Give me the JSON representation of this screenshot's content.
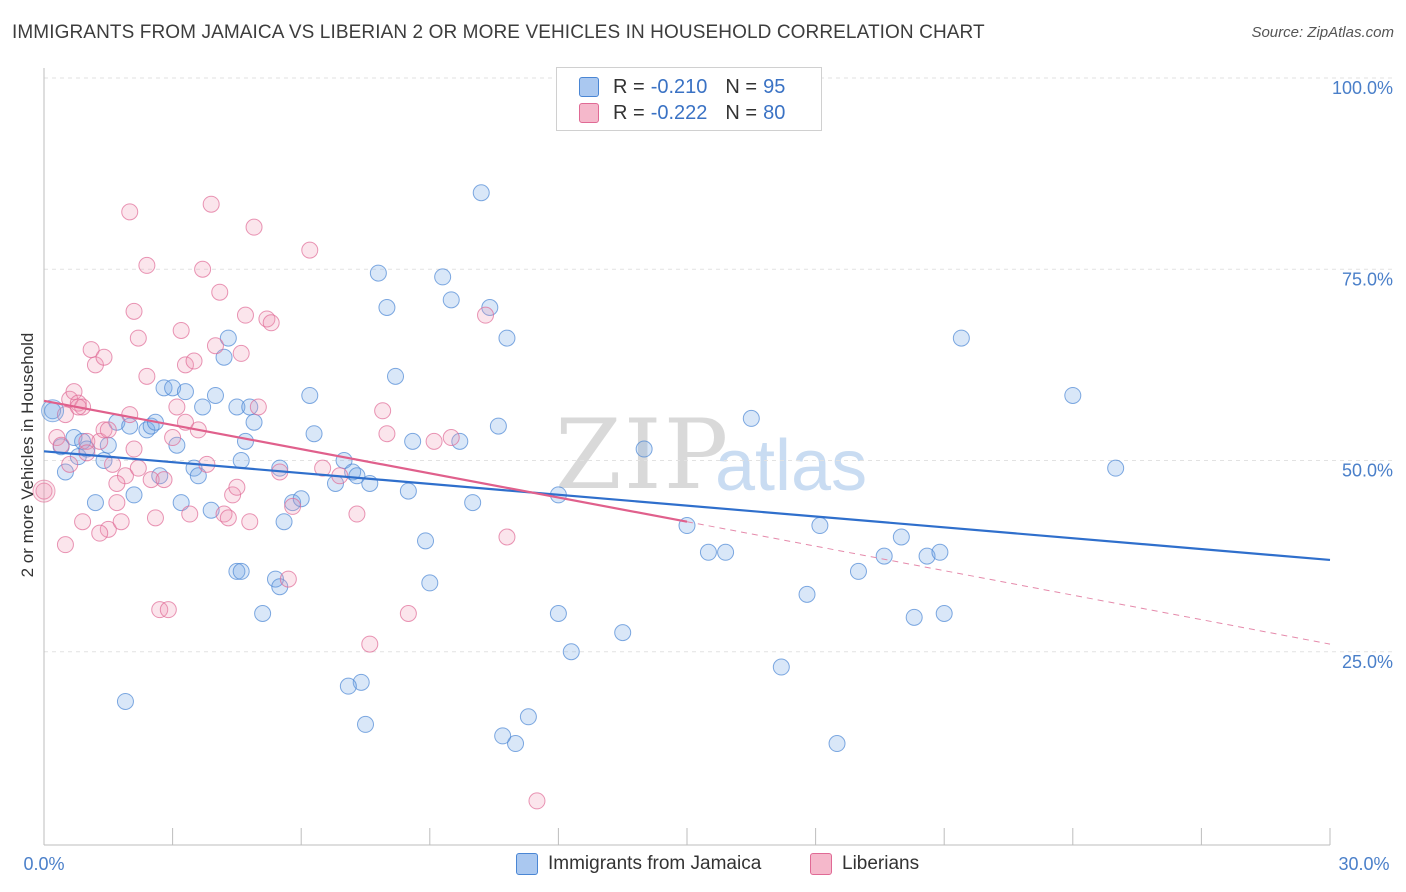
{
  "title": "IMMIGRANTS FROM JAMAICA VS LIBERIAN 2 OR MORE VEHICLES IN HOUSEHOLD CORRELATION CHART",
  "source": "Source: ZipAtlas.com",
  "watermark": {
    "zip": "ZIP",
    "atlas": "atlas"
  },
  "legend": {
    "rows": [
      {
        "r_label": "R =",
        "r_value": "-0.210",
        "n_label": "N =",
        "n_value": "95",
        "color": "#aac8f0"
      },
      {
        "r_label": "R =",
        "r_value": "-0.222",
        "n_label": "N =",
        "n_value": "80",
        "color": "#f5b8cb"
      }
    ]
  },
  "bottom_legend": [
    {
      "label": "Immigrants from Jamaica",
      "color": "#aac8f0"
    },
    {
      "label": "Liberians",
      "color": "#f5b8cb"
    }
  ],
  "colors": {
    "blue": "#4a86d4",
    "blue_fill": "rgba(120,170,230,0.28)",
    "pink": "#e06a95",
    "pink_fill": "rgba(240,150,180,0.25)",
    "tick": "#4a7fc9"
  },
  "chart_data": {
    "type": "scatter",
    "title": "IMMIGRANTS FROM JAMAICA VS LIBERIAN 2 OR MORE VEHICLES IN HOUSEHOLD CORRELATION CHART",
    "xlabel": "",
    "ylabel": "2 or more Vehicles in Household",
    "xlim": [
      0,
      30
    ],
    "ylim": [
      0,
      100
    ],
    "x_tick_labels": [
      "0.0%",
      "30.0%"
    ],
    "y_ticks": [
      25,
      50,
      75,
      100
    ],
    "y_tick_labels": [
      "25.0%",
      "50.0%",
      "75.0%",
      "100.0%"
    ],
    "grid": true,
    "legend_position": "top-center",
    "series": [
      {
        "name": "Immigrants from Jamaica",
        "r": -0.21,
        "n": 95,
        "trend": {
          "x": [
            0,
            30
          ],
          "y": [
            51.2,
            37.0
          ]
        },
        "points": [
          [
            0.2,
            56.5
          ],
          [
            0.4,
            51.8
          ],
          [
            0.5,
            48.5
          ],
          [
            0.7,
            53.0
          ],
          [
            0.8,
            50.5
          ],
          [
            0.9,
            52.5
          ],
          [
            1.0,
            51.5
          ],
          [
            1.2,
            44.5
          ],
          [
            1.4,
            50.0
          ],
          [
            1.5,
            52.0
          ],
          [
            1.7,
            55.0
          ],
          [
            2.0,
            54.5
          ],
          [
            2.1,
            45.5
          ],
          [
            2.4,
            54.0
          ],
          [
            2.5,
            54.5
          ],
          [
            2.6,
            55.0
          ],
          [
            2.7,
            48.0
          ],
          [
            2.8,
            59.5
          ],
          [
            3.0,
            59.5
          ],
          [
            3.1,
            52.0
          ],
          [
            3.2,
            44.5
          ],
          [
            3.3,
            59.0
          ],
          [
            3.5,
            49.0
          ],
          [
            3.6,
            48.0
          ],
          [
            3.7,
            57.0
          ],
          [
            3.9,
            43.5
          ],
          [
            4.0,
            58.5
          ],
          [
            4.2,
            63.5
          ],
          [
            4.3,
            66.0
          ],
          [
            4.5,
            57.0
          ],
          [
            4.6,
            50.0
          ],
          [
            4.7,
            52.5
          ],
          [
            4.8,
            57.0
          ],
          [
            4.9,
            55.0
          ],
          [
            5.1,
            30.0
          ],
          [
            5.4,
            34.5
          ],
          [
            5.5,
            49.0
          ],
          [
            5.6,
            42.0
          ],
          [
            5.8,
            44.5
          ],
          [
            6.0,
            45.0
          ],
          [
            6.2,
            58.5
          ],
          [
            6.3,
            53.5
          ],
          [
            6.8,
            47.0
          ],
          [
            7.0,
            50.0
          ],
          [
            7.2,
            48.5
          ],
          [
            7.3,
            48.0
          ],
          [
            7.4,
            21.0
          ],
          [
            7.6,
            47.0
          ],
          [
            7.8,
            74.5
          ],
          [
            8.0,
            70.0
          ],
          [
            8.2,
            61.0
          ],
          [
            8.5,
            46.0
          ],
          [
            8.6,
            52.5
          ],
          [
            8.9,
            39.5
          ],
          [
            9.0,
            34.0
          ],
          [
            9.3,
            74.0
          ],
          [
            9.5,
            71.0
          ],
          [
            9.7,
            52.5
          ],
          [
            10.0,
            44.5
          ],
          [
            10.2,
            85.0
          ],
          [
            10.4,
            70.0
          ],
          [
            10.6,
            54.5
          ],
          [
            10.8,
            66.0
          ],
          [
            11.0,
            13.0
          ],
          [
            11.3,
            16.5
          ],
          [
            12.0,
            45.5
          ],
          [
            12.0,
            30.0
          ],
          [
            12.3,
            25.0
          ],
          [
            13.5,
            27.5
          ],
          [
            14.0,
            51.5
          ],
          [
            15.0,
            41.5
          ],
          [
            15.5,
            38.0
          ],
          [
            15.9,
            38.0
          ],
          [
            16.5,
            55.5
          ],
          [
            17.2,
            23.0
          ],
          [
            17.8,
            32.5
          ],
          [
            18.1,
            41.5
          ],
          [
            18.5,
            13.0
          ],
          [
            19.0,
            35.5
          ],
          [
            19.6,
            37.5
          ],
          [
            20.0,
            40.0
          ],
          [
            20.3,
            29.5
          ],
          [
            20.6,
            37.5
          ],
          [
            20.9,
            38.0
          ],
          [
            21.0,
            30.0
          ],
          [
            21.4,
            66.0
          ],
          [
            24.0,
            58.5
          ],
          [
            25.0,
            49.0
          ],
          [
            10.7,
            14.0
          ],
          [
            7.5,
            15.5
          ],
          [
            5.5,
            33.5
          ],
          [
            4.5,
            35.5
          ],
          [
            4.6,
            35.5
          ],
          [
            1.9,
            18.5
          ],
          [
            7.1,
            20.5
          ]
        ]
      },
      {
        "name": "Liberians",
        "r": -0.222,
        "n": 80,
        "trend": {
          "x": [
            0,
            15
          ],
          "y": [
            57.8,
            42.0
          ]
        },
        "trend_extension": {
          "x": [
            15,
            30
          ],
          "y": [
            42.0,
            26.0
          ]
        },
        "points": [
          [
            0.0,
            46.0
          ],
          [
            0.3,
            53.0
          ],
          [
            0.4,
            52.0
          ],
          [
            0.5,
            56.0
          ],
          [
            0.6,
            58.0
          ],
          [
            0.6,
            49.5
          ],
          [
            0.7,
            59.0
          ],
          [
            0.8,
            57.5
          ],
          [
            0.9,
            57.0
          ],
          [
            1.0,
            52.5
          ],
          [
            1.1,
            64.5
          ],
          [
            1.2,
            62.5
          ],
          [
            1.3,
            52.5
          ],
          [
            1.4,
            54.0
          ],
          [
            1.5,
            41.0
          ],
          [
            1.6,
            49.5
          ],
          [
            1.7,
            44.5
          ],
          [
            1.8,
            42.0
          ],
          [
            1.9,
            48.0
          ],
          [
            2.0,
            56.0
          ],
          [
            2.1,
            69.5
          ],
          [
            2.2,
            66.0
          ],
          [
            2.4,
            61.0
          ],
          [
            2.5,
            47.5
          ],
          [
            2.6,
            42.5
          ],
          [
            2.7,
            30.5
          ],
          [
            2.8,
            47.5
          ],
          [
            2.9,
            30.5
          ],
          [
            3.0,
            53.0
          ],
          [
            3.1,
            57.0
          ],
          [
            3.2,
            67.0
          ],
          [
            3.3,
            62.5
          ],
          [
            3.4,
            43.0
          ],
          [
            3.5,
            63.0
          ],
          [
            3.6,
            54.0
          ],
          [
            3.7,
            75.0
          ],
          [
            3.8,
            49.5
          ],
          [
            4.0,
            65.0
          ],
          [
            4.1,
            72.0
          ],
          [
            4.2,
            43.0
          ],
          [
            4.3,
            42.5
          ],
          [
            4.4,
            45.5
          ],
          [
            4.5,
            46.5
          ],
          [
            4.6,
            64.0
          ],
          [
            4.7,
            69.0
          ],
          [
            4.8,
            42.0
          ],
          [
            4.9,
            80.5
          ],
          [
            5.0,
            57.0
          ],
          [
            5.2,
            68.5
          ],
          [
            5.3,
            68.0
          ],
          [
            5.5,
            48.5
          ],
          [
            5.7,
            34.5
          ],
          [
            5.8,
            44.0
          ],
          [
            6.2,
            77.5
          ],
          [
            6.5,
            49.0
          ],
          [
            6.9,
            48.0
          ],
          [
            7.3,
            43.0
          ],
          [
            7.6,
            26.0
          ],
          [
            7.9,
            56.5
          ],
          [
            8.0,
            53.5
          ],
          [
            8.5,
            30.0
          ],
          [
            9.1,
            52.5
          ],
          [
            9.5,
            53.0
          ],
          [
            10.3,
            69.0
          ],
          [
            10.8,
            40.0
          ],
          [
            11.5,
            5.5
          ],
          [
            1.4,
            63.5
          ],
          [
            2.0,
            82.5
          ],
          [
            2.4,
            75.5
          ],
          [
            3.9,
            83.5
          ],
          [
            1.5,
            54.0
          ],
          [
            0.5,
            39.0
          ],
          [
            0.8,
            57.0
          ],
          [
            1.0,
            51.0
          ],
          [
            2.2,
            49.0
          ],
          [
            3.3,
            55.0
          ],
          [
            0.9,
            42.0
          ],
          [
            1.3,
            40.5
          ],
          [
            2.1,
            51.5
          ],
          [
            1.7,
            47.0
          ]
        ]
      }
    ]
  }
}
